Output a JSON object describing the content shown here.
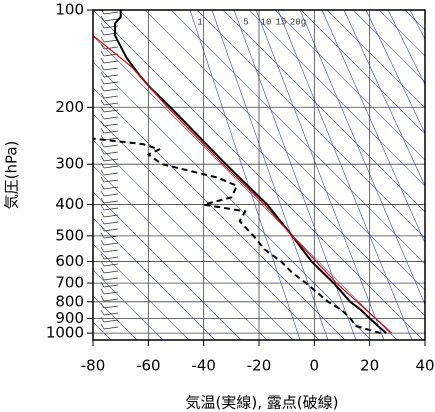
{
  "chart_data": {
    "type": "line",
    "xlabel": "気温(実線), 露点(破線)",
    "ylabel": "気圧(hPa)",
    "mixing_ratio_labels": [
      "1",
      "5",
      "10",
      "15",
      "20g"
    ],
    "xlim": [
      -80,
      40
    ],
    "xticks": [
      -80,
      -60,
      -40,
      -20,
      0,
      20,
      40
    ],
    "ylim": [
      1050,
      100
    ],
    "yscale": "log",
    "yticks": [
      100,
      200,
      300,
      400,
      500,
      600,
      700,
      800,
      900,
      1000
    ],
    "grid": true,
    "series": [
      {
        "color": "#000000",
        "dash": false,
        "x": [
          26,
          23,
          20,
          17,
          13,
          7,
          -1,
          -8,
          -17,
          -24,
          -32,
          -41,
          -52,
          -59,
          -63,
          -68,
          -72,
          -72,
          -70,
          -70
        ],
        "y": [
          1000,
          950,
          900,
          850,
          800,
          700,
          600,
          500,
          400,
          350,
          300,
          250,
          200,
          175,
          160,
          140,
          120,
          110,
          105,
          100
        ]
      },
      {
        "color": "#000000",
        "dash": true,
        "x": [
          24,
          15,
          13,
          10,
          5,
          -3,
          -8,
          -12,
          -18,
          -22,
          -27,
          -25,
          -40,
          -30,
          -28,
          -35,
          -55,
          -60,
          -56,
          -62,
          -80
        ],
        "y": [
          1000,
          950,
          900,
          850,
          800,
          700,
          650,
          600,
          550,
          500,
          450,
          420,
          400,
          380,
          350,
          330,
          300,
          280,
          270,
          260,
          250
        ]
      },
      {
        "color": "#e00000",
        "dash": false,
        "x": [
          28,
          8,
          -8,
          -18,
          -33,
          -53,
          -66,
          -80
        ],
        "y": [
          1000,
          700,
          500,
          400,
          300,
          200,
          150,
          120
        ]
      }
    ]
  }
}
